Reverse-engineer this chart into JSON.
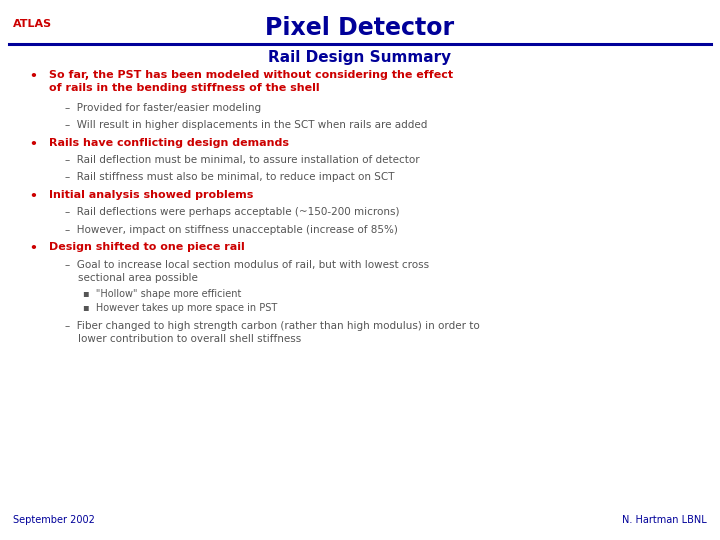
{
  "title": "Pixel Detector",
  "atlas_label": "ATLAS",
  "subtitle": "Rail Design Summary",
  "header_line_color": "#000099",
  "atlas_color": "#cc0000",
  "title_color": "#000099",
  "subtitle_color": "#000099",
  "bullet_color": "#cc0000",
  "sub_color": "#555555",
  "bg_color": "#ffffff",
  "footer_left": "September 2002",
  "footer_right": "N. Hartman LBNL",
  "footer_color": "#000099"
}
